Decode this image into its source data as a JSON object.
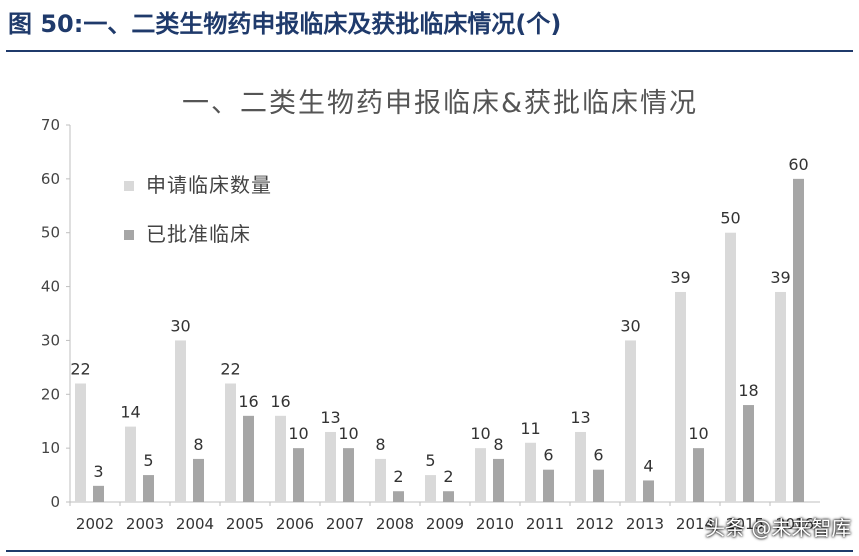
{
  "header": {
    "figure_title": "图 50:一、二类生物药申报临床及获批临床情况(个)"
  },
  "watermark": "头条 @未来智库",
  "colors": {
    "header": "#1f3a6b",
    "series_applied": "#d9d9d9",
    "series_approved": "#a6a6a6"
  },
  "chart_data": {
    "type": "bar",
    "title": "一、二类生物药申报临床&获批临床情况",
    "categories": [
      "2002",
      "2003",
      "2004",
      "2005",
      "2006",
      "2007",
      "2008",
      "2009",
      "2010",
      "2011",
      "2012",
      "2013",
      "2014",
      "2015",
      "2016"
    ],
    "series": [
      {
        "name": "申请临床数量",
        "values": [
          22,
          14,
          30,
          22,
          16,
          13,
          8,
          5,
          10,
          11,
          13,
          30,
          39,
          50,
          39
        ]
      },
      {
        "name": "已批准临床",
        "values": [
          3,
          5,
          8,
          16,
          10,
          10,
          2,
          2,
          8,
          6,
          6,
          4,
          10,
          18,
          60
        ]
      }
    ],
    "ylim": [
      0,
      70
    ],
    "yticks": [
      0,
      10,
      20,
      30,
      40,
      50,
      60,
      70
    ],
    "xlabel": "",
    "ylabel": "",
    "legend": "top-left",
    "grid": false
  }
}
